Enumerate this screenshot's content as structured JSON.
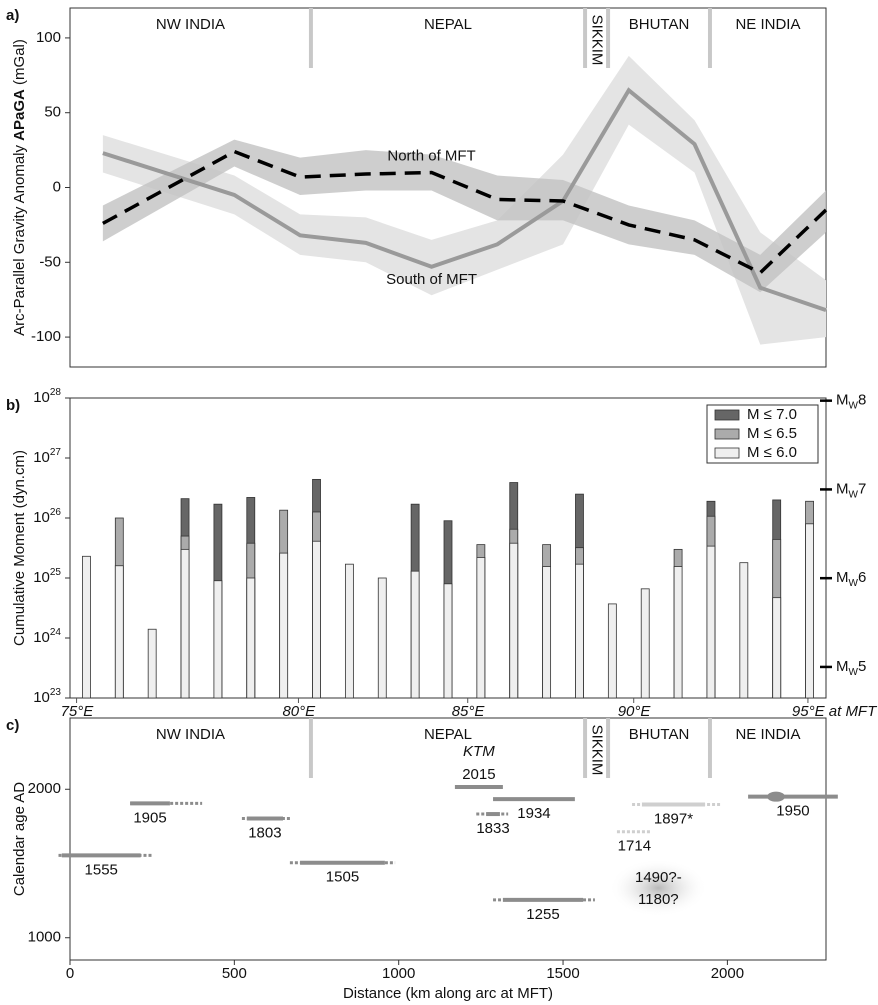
{
  "chart_data": [
    {
      "type": "line",
      "panel_label": "a)",
      "ylabel": [
        "Arc-Parallel Gravity Anomaly ",
        "APaGA",
        " (mGal)"
      ],
      "x": [
        100,
        500,
        700,
        900,
        1100,
        1300,
        1500,
        1700,
        1900,
        2100,
        2300
      ],
      "xlim": [
        0,
        2300
      ],
      "ylim": [
        -120,
        120
      ],
      "yticks": [
        -100,
        -50,
        0,
        50,
        100
      ],
      "regions": [
        "NW INDIA",
        "NEPAL",
        "SIKKIM",
        "BHUTAN",
        "NE INDIA"
      ],
      "region_boundaries": [
        733,
        1567,
        1637,
        1947
      ],
      "series": [
        {
          "name": "South of MFT",
          "color": "#9a9a9a",
          "band_color": "#e4e4e4",
          "dash": false,
          "values": [
            23,
            -5,
            -32,
            -37,
            -53,
            -38,
            -9,
            65,
            29,
            -67,
            -82
          ],
          "lower": [
            10,
            -18,
            -45,
            -50,
            -72,
            -55,
            -38,
            42,
            10,
            -105,
            -100
          ],
          "upper": [
            35,
            8,
            -18,
            -20,
            -35,
            -22,
            22,
            88,
            45,
            -30,
            -62
          ]
        },
        {
          "name": "North of MFT",
          "color": "#000000",
          "band_color": "#c2c2c2",
          "dash": true,
          "values": [
            -24,
            24,
            7,
            9,
            10,
            -8,
            -9,
            -25,
            -35,
            -57,
            -15
          ],
          "lower": [
            -36,
            14,
            -5,
            -2,
            -2,
            -22,
            -22,
            -38,
            -45,
            -70,
            -30
          ],
          "upper": [
            -12,
            32,
            20,
            25,
            22,
            8,
            5,
            -12,
            -22,
            -45,
            -2
          ]
        }
      ]
    },
    {
      "type": "bar",
      "panel_label": "b)",
      "ylabel": "Cumulative Moment (dyn.cm)",
      "log_y": true,
      "x": [
        50,
        150,
        250,
        350,
        450,
        550,
        650,
        750,
        850,
        950,
        1050,
        1150,
        1250,
        1350,
        1450,
        1550,
        1650,
        1750,
        1850,
        1950,
        2050,
        2150,
        2250
      ],
      "xlim": [
        0,
        2300
      ],
      "ylim": [
        1e+23,
        1e+28
      ],
      "yticks": [
        {
          "value": 1e+23,
          "label": "10",
          "sup": "23"
        },
        {
          "value": 1e+24,
          "label": "10",
          "sup": "24"
        },
        {
          "value": 1e+25,
          "label": "10",
          "sup": "25"
        },
        {
          "value": 1e+26,
          "label": "10",
          "sup": "26"
        },
        {
          "value": 1e+27,
          "label": "10",
          "sup": "27"
        },
        {
          "value": 1e+28,
          "label": "10",
          "sup": "28"
        }
      ],
      "y2lim": [
        4.65,
        8.03
      ],
      "y2ticks": [
        5,
        6,
        7,
        8
      ],
      "y2tick_prefix": "M",
      "y2tick_sub": "W",
      "xticks": [
        {
          "value": 20,
          "label": "75°E"
        },
        {
          "value": 695,
          "label": "80°E"
        },
        {
          "value": 1210,
          "label": "85°E"
        },
        {
          "value": 1715,
          "label": "90°E"
        },
        {
          "value": 2245,
          "label": "95°E at MFT"
        }
      ],
      "legend": "top-right",
      "series": [
        {
          "name": "M ≤ 7.0",
          "color": "#666666",
          "values": [
            null,
            null,
            null,
            2.1e+26,
            1.7e+26,
            2.2e+26,
            null,
            4.4e+26,
            null,
            null,
            1.7e+26,
            9e+25,
            null,
            3.9e+26,
            null,
            2.5e+26,
            null,
            null,
            null,
            1.9e+26,
            null,
            2e+26,
            null
          ]
        },
        {
          "name": "M ≤ 6.5",
          "color": "#ababab",
          "values": [
            null,
            1e+26,
            null,
            5e+25,
            null,
            3.8e+25,
            1.35e+26,
            1.26e+26,
            null,
            null,
            null,
            null,
            3.6e+25,
            6.5e+25,
            3.6e+25,
            3.2e+25,
            null,
            null,
            3e+25,
            1.07e+26,
            null,
            4.4e+25,
            1.9e+26
          ]
        },
        {
          "name": "M ≤ 6.0",
          "color": "#efefef",
          "values": [
            2.3e+25,
            1.6e+25,
            1.4e+24,
            3e+25,
            9e+24,
            1e+25,
            2.6e+25,
            4.1e+25,
            1.7e+25,
            1e+25,
            1.3e+25,
            8e+24,
            2.2e+25,
            3.8e+25,
            1.55e+25,
            1.7e+25,
            3.7e+24,
            6.6e+24,
            1.55e+25,
            3.4e+25,
            1.8e+25,
            4.7e+24,
            8e+25
          ]
        }
      ]
    },
    {
      "type": "timeline",
      "panel_label": "c)",
      "ylabel": "Calendar age AD",
      "xlabel": "Distance (km along arc at MFT)",
      "xlim": [
        0,
        2300
      ],
      "ylim": [
        850,
        2480
      ],
      "xticks": [
        0,
        500,
        1000,
        1500,
        2000
      ],
      "yticks": [
        1000,
        2000
      ],
      "regions": [
        "NW INDIA",
        "NEPAL",
        "SIKKIM",
        "BHUTAN",
        "NE INDIA"
      ],
      "region_boundaries": [
        733,
        1567,
        1637,
        1947
      ],
      "events": [
        {
          "year": 1555,
          "rupture": [
            -25,
            215
          ],
          "extent": [
            -35,
            250
          ],
          "color": "#8c8c8c"
        },
        {
          "year": 1905,
          "rupture": [
            183,
            304
          ],
          "extent": [
            183,
            402
          ],
          "color": "#8c8c8c"
        },
        {
          "year": 1803,
          "rupture": [
            538,
            648
          ],
          "extent": [
            523,
            675
          ],
          "color": "#8c8c8c"
        },
        {
          "year": 1505,
          "rupture": [
            700,
            958
          ],
          "extent": [
            669,
            989
          ],
          "color": "#8c8c8c"
        },
        {
          "year": 2015,
          "rupture": [
            1171,
            1317
          ],
          "label_position": "above",
          "annotation": "KTM",
          "color": "#8c8c8c"
        },
        {
          "year": 1934,
          "rupture": [
            1287,
            1536
          ],
          "color": "#8c8c8c"
        },
        {
          "year": 1833,
          "rupture": [
            1266,
            1308
          ],
          "extent": [
            1236,
            1333
          ],
          "color": "#8c8c8c"
        },
        {
          "year": 1255,
          "rupture": [
            1317,
            1561
          ],
          "extent": [
            1287,
            1597
          ],
          "color": "#8c8c8c"
        },
        {
          "year": 1897,
          "label": "1897*",
          "rupture": [
            1740,
            1932
          ],
          "extent": [
            1710,
            1978
          ],
          "color": "#cfcfcf"
        },
        {
          "year": 1714,
          "extent": [
            1664,
            1770
          ],
          "color": "#cfcfcf"
        },
        {
          "year": 1490,
          "year_end": 1180,
          "label": [
            "1490?-",
            "1180?"
          ],
          "rupture": [
            1640,
            1940
          ],
          "color": "#bdbdbd"
        },
        {
          "year": 1950,
          "rupture": [
            2063,
            2336
          ],
          "epicenter": 2148,
          "color": "#8c8c8c"
        }
      ]
    }
  ]
}
